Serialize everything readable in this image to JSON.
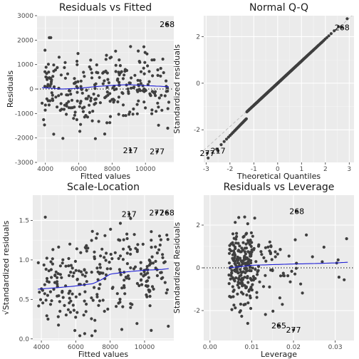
{
  "colors": {
    "panel_bg": "#ebebeb",
    "grid_major": "#ffffff",
    "grid_minor": "#f5f5f5",
    "point": "#3f3f3f",
    "smooth": "#1f1fd6",
    "reference": "#b8b8b8"
  },
  "chart_data": [
    {
      "id": "rvf",
      "type": "scatter",
      "title": "Residuals vs Fitted",
      "xlabel": "Fitted values",
      "ylabel": "Residuals",
      "xlim": [
        3500,
        11700
      ],
      "ylim": [
        -3000,
        3000
      ],
      "xticks": [
        4000,
        6000,
        8000,
        10000
      ],
      "yticks": [
        -3000,
        -2000,
        -1000,
        0,
        1000,
        2000,
        3000
      ],
      "hline": 0,
      "smooth": {
        "x": [
          3800,
          5000,
          6000,
          7000,
          8000,
          9000,
          10000,
          11000,
          11400
        ],
        "y": [
          60,
          0,
          30,
          100,
          150,
          180,
          140,
          110,
          90
        ]
      },
      "labeled_points": [
        {
          "label": "268",
          "x": 11300,
          "y": 2650
        },
        {
          "label": "217",
          "x": 9100,
          "y": -2500
        },
        {
          "label": "277",
          "x": 10700,
          "y": -2550
        }
      ],
      "n_points": 280,
      "seed": 11
    },
    {
      "id": "qq",
      "type": "scatter",
      "title": "Normal Q-Q",
      "xlabel": "Theoretical Quantiles",
      "ylabel": "Standardized residuals",
      "xlim": [
        -3.1,
        3.2
      ],
      "ylim": [
        -3.4,
        2.9
      ],
      "xticks": [
        -3,
        -2,
        -1,
        0,
        1,
        2,
        3
      ],
      "yticks": [
        -2,
        0,
        2
      ],
      "refline": {
        "intercept": 0,
        "slope": 0.93
      },
      "labeled_points": [
        {
          "label": "268",
          "x": 2.7,
          "y": 2.4
        },
        {
          "label": "217",
          "x": -2.5,
          "y": -2.9
        },
        {
          "label": "277",
          "x": -2.95,
          "y": -3.0
        }
      ],
      "n_points": 280,
      "seed": 23
    },
    {
      "id": "sl",
      "type": "scatter",
      "title": "Scale-Location",
      "xlabel": "Fitted values",
      "ylabel": "√Standardized residuals",
      "xlim": [
        3500,
        11700
      ],
      "ylim": [
        -0.02,
        1.82
      ],
      "xticks": [
        4000,
        6000,
        8000,
        10000
      ],
      "yticks": [
        0.0,
        0.5,
        1.0,
        1.5
      ],
      "ytick_labels": [
        "0.0",
        "0.5",
        "1.0",
        "1.5"
      ],
      "smooth": {
        "x": [
          3800,
          5000,
          6000,
          7000,
          7500,
          8000,
          9000,
          10000,
          11000,
          11400
        ],
        "y": [
          0.63,
          0.65,
          0.67,
          0.7,
          0.75,
          0.82,
          0.85,
          0.87,
          0.88,
          0.89
        ]
      },
      "labeled_points": [
        {
          "label": "217",
          "x": 9100,
          "y": 1.58
        },
        {
          "label": "277",
          "x": 10700,
          "y": 1.6
        },
        {
          "label": "268",
          "x": 11300,
          "y": 1.6
        }
      ],
      "n_points": 280,
      "seed": 37
    },
    {
      "id": "rvl",
      "type": "scatter",
      "title": "Residuals vs Leverage",
      "xlabel": "Leverage",
      "ylabel": "Standardized Residuals",
      "xlim": [
        -0.0015,
        0.0345
      ],
      "ylim": [
        -3.4,
        3.4
      ],
      "xticks": [
        0.0,
        0.01,
        0.02,
        0.03
      ],
      "xtick_labels": [
        "0.00",
        "0.01",
        "0.02",
        "0.03"
      ],
      "yticks": [
        -2,
        0,
        2
      ],
      "hline": 0,
      "smooth": {
        "x": [
          0.0045,
          0.007,
          0.01,
          0.015,
          0.02,
          0.025,
          0.03,
          0.033
        ],
        "y": [
          0.0,
          0.05,
          0.12,
          0.15,
          0.18,
          0.2,
          0.23,
          0.26
        ]
      },
      "labeled_points": [
        {
          "label": "268",
          "x": 0.0208,
          "y": 2.65
        },
        {
          "label": "265",
          "x": 0.0165,
          "y": -2.7
        },
        {
          "label": "277",
          "x": 0.02,
          "y": -2.9
        }
      ],
      "n_points": 280,
      "seed": 53
    }
  ]
}
